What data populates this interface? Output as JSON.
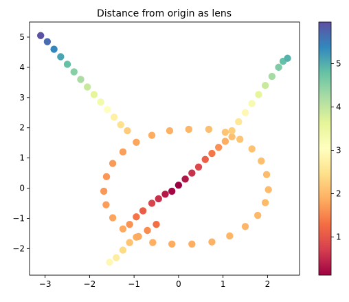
{
  "chart_data": {
    "type": "scatter",
    "title": "Distance from origin as lens",
    "xlabel": "",
    "ylabel": "",
    "xlim": [
      -3.35,
      2.72
    ],
    "ylim": [
      -2.88,
      5.5
    ],
    "x_ticks": [
      -3,
      -2,
      -1,
      0,
      1,
      2
    ],
    "y_ticks": [
      -2,
      -1,
      0,
      1,
      2,
      3,
      4,
      5
    ],
    "grid": false,
    "colormap": "Spectral",
    "colorbar": {
      "range": [
        0.12,
        5.96
      ],
      "ticks": [
        1,
        2,
        3,
        4,
        5
      ]
    },
    "series": [
      {
        "shape": "circle (center about (0.23, -0.05), radius about 1.9)",
        "points": [
          [
            2.02,
            -0.05
          ],
          [
            1.98,
            0.45
          ],
          [
            1.86,
            0.9
          ],
          [
            1.65,
            1.3
          ],
          [
            1.38,
            1.62
          ],
          [
            1.05,
            1.85
          ],
          [
            0.68,
            1.95
          ],
          [
            0.23,
            1.95
          ],
          [
            -0.2,
            1.9
          ],
          [
            -0.6,
            1.75
          ],
          [
            -0.95,
            1.52
          ],
          [
            -1.25,
            1.2
          ],
          [
            -1.48,
            0.82
          ],
          [
            -1.62,
            0.38
          ],
          [
            -1.68,
            -0.1
          ],
          [
            -1.63,
            -0.55
          ],
          [
            -1.48,
            -0.98
          ],
          [
            -1.25,
            -1.35
          ],
          [
            -0.95,
            -1.62
          ],
          [
            -0.58,
            -1.8
          ],
          [
            -0.15,
            -1.85
          ],
          [
            0.3,
            -1.85
          ],
          [
            0.75,
            -1.78
          ],
          [
            1.15,
            -1.58
          ],
          [
            1.5,
            -1.27
          ],
          [
            1.78,
            -0.9
          ],
          [
            1.95,
            -0.48
          ]
        ]
      },
      {
        "shape": "diagonal line y = x",
        "points": [
          [
            -1.1,
            -1.2
          ],
          [
            -0.95,
            -0.95
          ],
          [
            -0.8,
            -0.75
          ],
          [
            -0.6,
            -0.5
          ],
          [
            -0.45,
            -0.35
          ],
          [
            -0.3,
            -0.2
          ],
          [
            -0.15,
            -0.1
          ],
          [
            0.0,
            0.1
          ],
          [
            0.15,
            0.3
          ],
          [
            0.3,
            0.5
          ],
          [
            0.45,
            0.7
          ],
          [
            0.6,
            0.95
          ],
          [
            0.75,
            1.15
          ],
          [
            0.9,
            1.35
          ],
          [
            1.05,
            1.55
          ],
          [
            1.2,
            1.7
          ]
        ]
      },
      {
        "shape": "arm from upper left down to lower right",
        "points": [
          [
            -3.1,
            5.05
          ],
          [
            -2.95,
            4.85
          ],
          [
            -2.8,
            4.6
          ],
          [
            -2.65,
            4.35
          ],
          [
            -2.5,
            4.1
          ],
          [
            -2.35,
            3.85
          ],
          [
            -2.2,
            3.6
          ],
          [
            -2.05,
            3.35
          ],
          [
            -1.9,
            3.1
          ],
          [
            -1.75,
            2.85
          ],
          [
            -1.6,
            2.6
          ],
          [
            -1.45,
            2.35
          ],
          [
            -1.3,
            2.1
          ],
          [
            -1.15,
            1.9
          ],
          [
            -0.5,
            -1.2
          ],
          [
            -0.7,
            -1.4
          ],
          [
            -0.9,
            -1.6
          ],
          [
            -1.1,
            -1.8
          ],
          [
            -1.25,
            -2.05
          ],
          [
            -1.4,
            -2.3
          ],
          [
            -1.55,
            -2.45
          ]
        ]
      },
      {
        "shape": "arm from lower centre up to upper right",
        "points": [
          [
            1.2,
            1.9
          ],
          [
            1.35,
            2.2
          ],
          [
            1.5,
            2.5
          ],
          [
            1.65,
            2.8
          ],
          [
            1.8,
            3.1
          ],
          [
            1.95,
            3.4
          ],
          [
            2.1,
            3.7
          ],
          [
            2.25,
            4.0
          ],
          [
            2.35,
            4.2
          ],
          [
            2.45,
            4.3
          ]
        ]
      }
    ]
  }
}
